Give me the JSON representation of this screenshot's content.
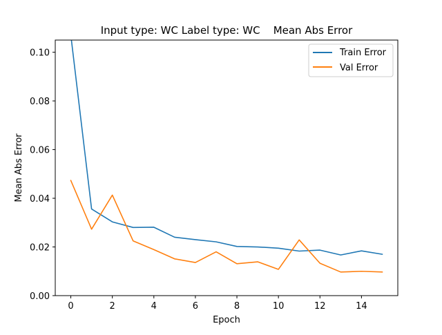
{
  "chart_data": {
    "type": "line",
    "title": "Input type: WC Label type: WC    Mean Abs Error",
    "xlabel": "Epoch",
    "ylabel": "Mean Abs Error",
    "xlim": [
      -0.75,
      15.75
    ],
    "ylim": [
      0.0,
      0.105
    ],
    "xticks": [
      0,
      2,
      4,
      6,
      8,
      10,
      12,
      14
    ],
    "xtick_labels": [
      "0",
      "2",
      "4",
      "6",
      "8",
      "10",
      "12",
      "14"
    ],
    "yticks": [
      0.0,
      0.02,
      0.04,
      0.06,
      0.08,
      0.1
    ],
    "ytick_labels": [
      "0.00",
      "0.02",
      "0.04",
      "0.06",
      "0.08",
      "0.10"
    ],
    "grid": false,
    "legend_position": "top-right",
    "x": [
      0,
      1,
      2,
      3,
      4,
      5,
      6,
      7,
      8,
      9,
      10,
      11,
      12,
      13,
      14,
      15
    ],
    "series": [
      {
        "name": "Train Error",
        "color": "#1f77b4",
        "values": [
          0.107,
          0.0356,
          0.0303,
          0.028,
          0.0281,
          0.024,
          0.023,
          0.0221,
          0.0202,
          0.02,
          0.0195,
          0.0183,
          0.0187,
          0.0167,
          0.0184,
          0.017
        ]
      },
      {
        "name": "Val Error",
        "color": "#ff7f0e",
        "values": [
          0.0473,
          0.0273,
          0.0413,
          0.0225,
          0.0189,
          0.0151,
          0.0136,
          0.018,
          0.0131,
          0.0139,
          0.0108,
          0.0229,
          0.0133,
          0.0097,
          0.01,
          0.0097
        ]
      }
    ]
  }
}
